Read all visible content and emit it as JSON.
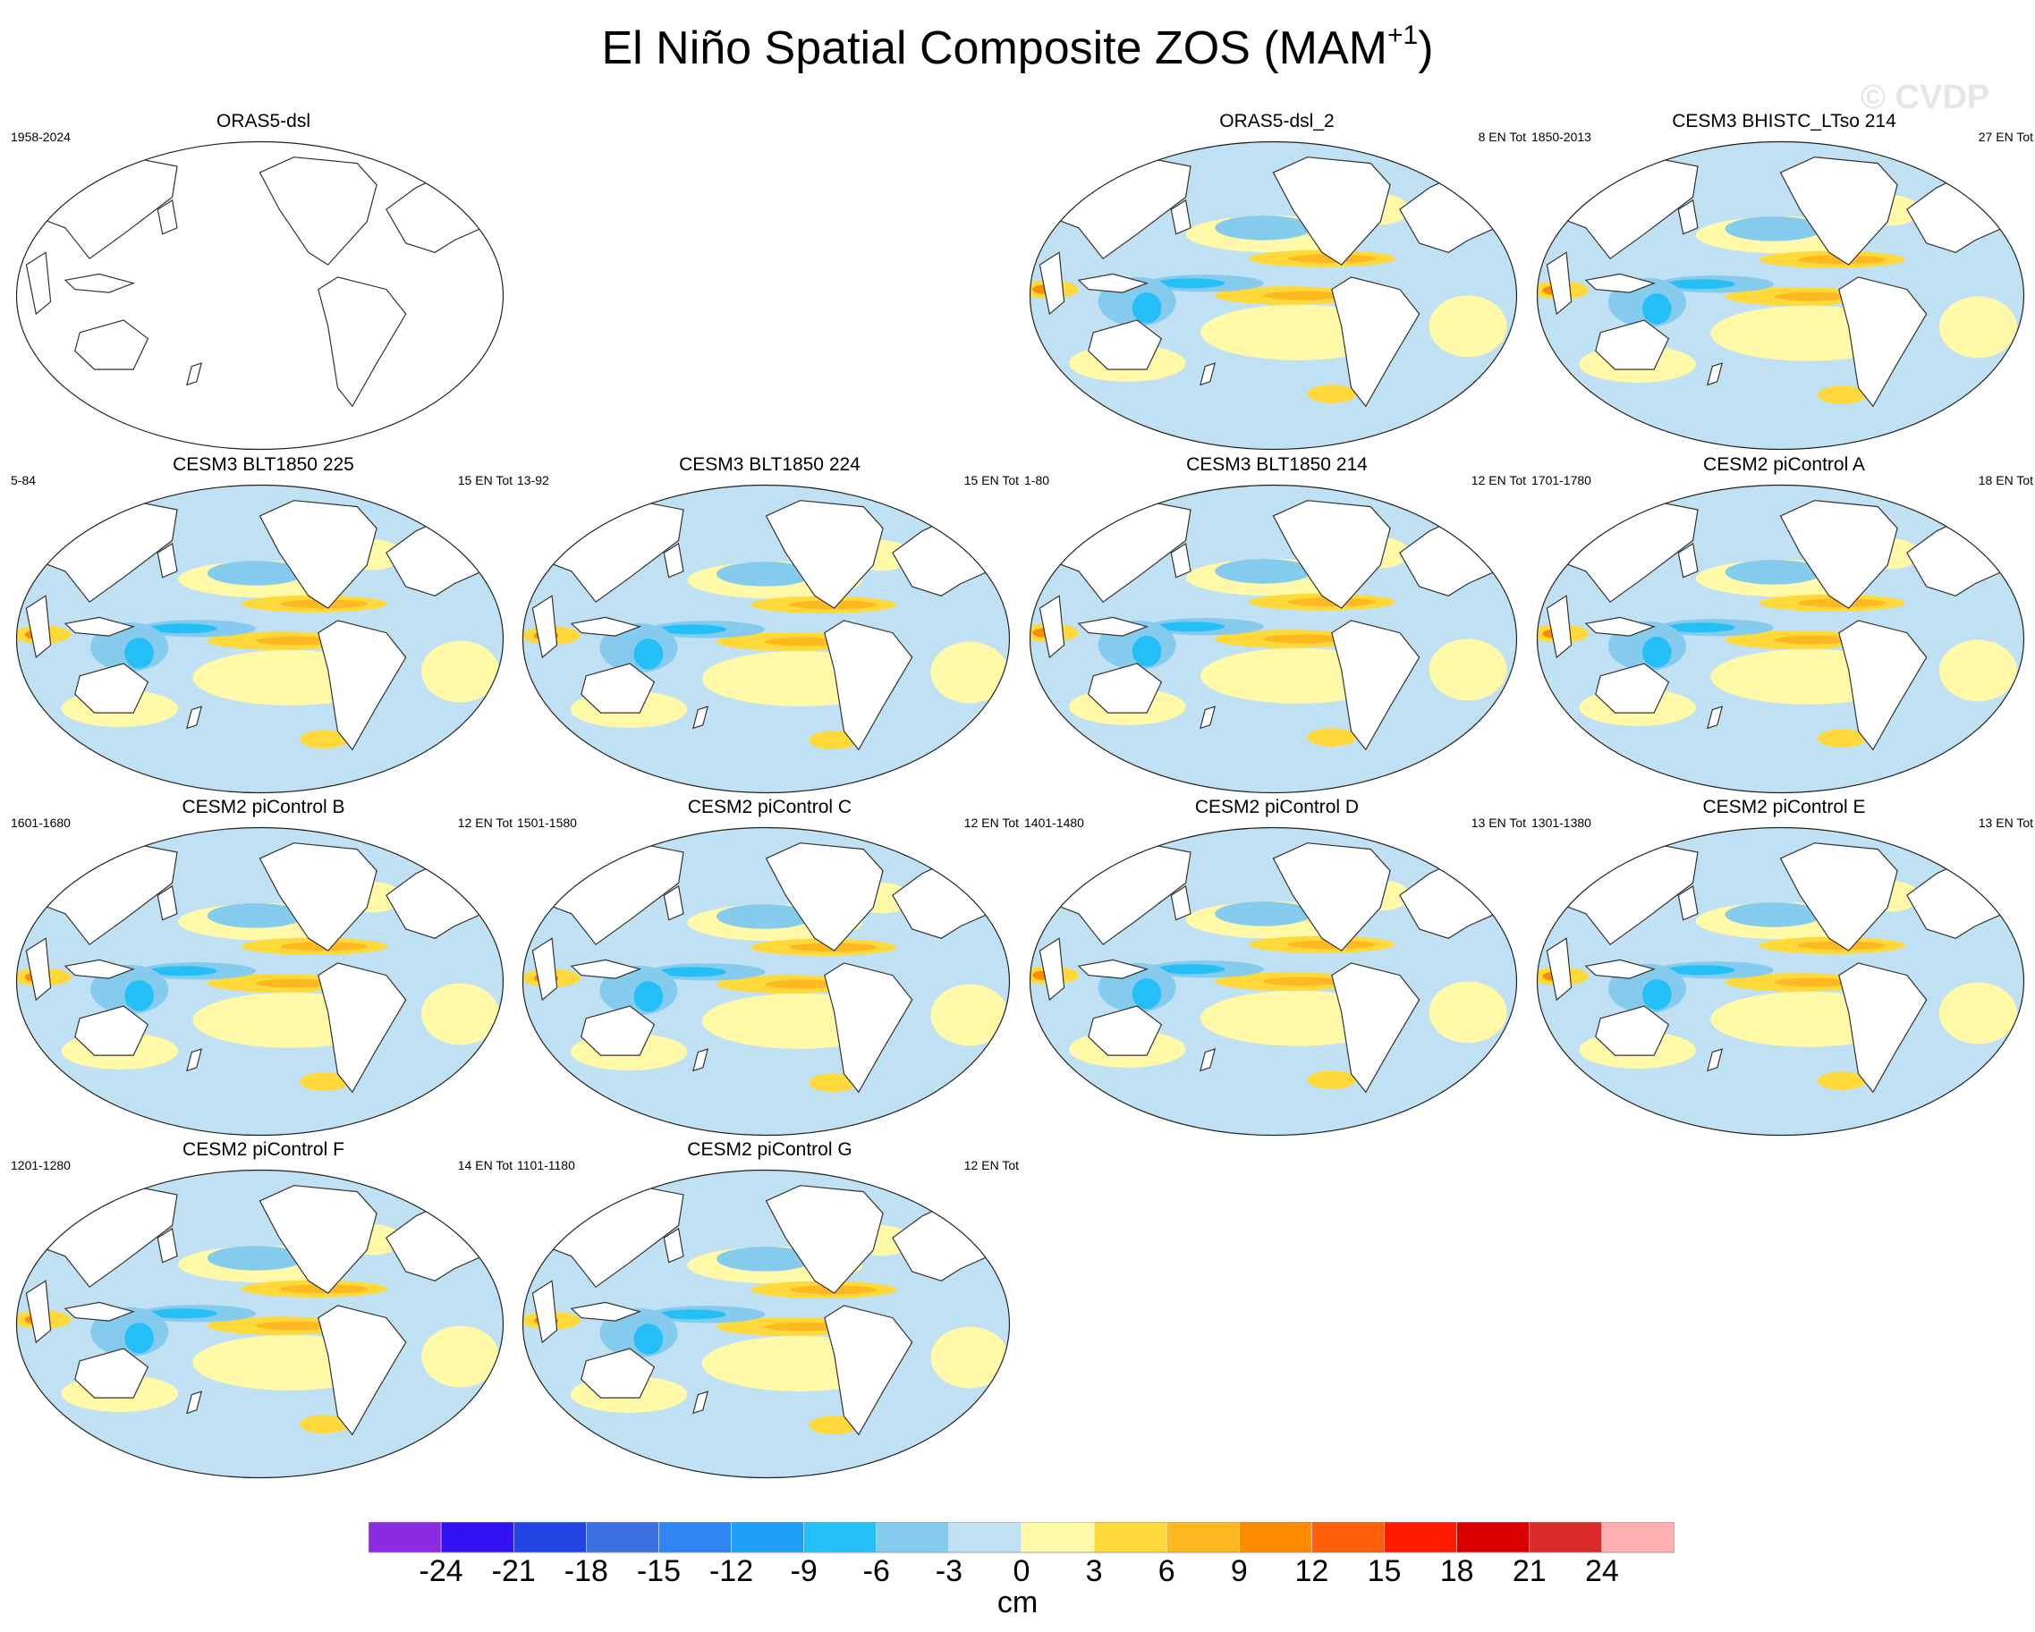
{
  "figure": {
    "title_main": "El Niño Spatial Composite ZOS (MAM",
    "title_sup": "+1",
    "title_close": ")",
    "watermark": "© CVDP"
  },
  "panels": [
    {
      "title": "ORAS5-dsl",
      "years": "1958-2024",
      "count": "",
      "empty": true
    },
    {
      "title": "ORAS5-dsl_2",
      "years": "",
      "count": "8 EN Tot",
      "variant": 0
    },
    {
      "title": "CESM3 BHISTC_LTso 214",
      "years": "1850-2013",
      "count": "27 EN Tot",
      "variant": 1
    },
    {
      "title": "CESM3 BLT1850 225",
      "years": "5-84",
      "count": "15 EN Tot",
      "variant": 2
    },
    {
      "title": "CESM3 BLT1850 224",
      "years": "13-92",
      "count": "15 EN Tot",
      "variant": 3
    },
    {
      "title": "CESM3 BLT1850 214",
      "years": "1-80",
      "count": "12 EN Tot",
      "variant": 4
    },
    {
      "title": "CESM2 piControl A",
      "years": "1701-1780",
      "count": "18 EN Tot",
      "variant": 5
    },
    {
      "title": "CESM2 piControl B",
      "years": "1601-1680",
      "count": "12 EN Tot",
      "variant": 6
    },
    {
      "title": "CESM2 piControl C",
      "years": "1501-1580",
      "count": "12 EN Tot",
      "variant": 7
    },
    {
      "title": "CESM2 piControl D",
      "years": "1401-1480",
      "count": "13 EN Tot",
      "variant": 8
    },
    {
      "title": "CESM2 piControl E",
      "years": "1301-1380",
      "count": "13 EN Tot",
      "variant": 9
    },
    {
      "title": "CESM2 piControl F",
      "years": "1201-1280",
      "count": "14 EN Tot",
      "variant": 10
    },
    {
      "title": "CESM2 piControl G",
      "years": "1101-1180",
      "count": "12 EN Tot",
      "variant": 11
    }
  ],
  "colorbar": {
    "unit": "cm",
    "labels": [
      "-24",
      "-21",
      "-18",
      "-15",
      "-12",
      "-9",
      "-6",
      "-3",
      "0",
      "3",
      "6",
      "9",
      "12",
      "15",
      "18",
      "21",
      "24"
    ],
    "colors": [
      "#8b2be2",
      "#3212f2",
      "#2345e6",
      "#3c6ee0",
      "#2f85f5",
      "#1ea0f5",
      "#25bff7",
      "#85cbee",
      "#bfe1f3",
      "#fff9a8",
      "#ffd93a",
      "#ffb81f",
      "#ff8c00",
      "#ff5e0a",
      "#ff1a00",
      "#db0000",
      "#d92b2b",
      "#ffb0b0"
    ]
  }
}
